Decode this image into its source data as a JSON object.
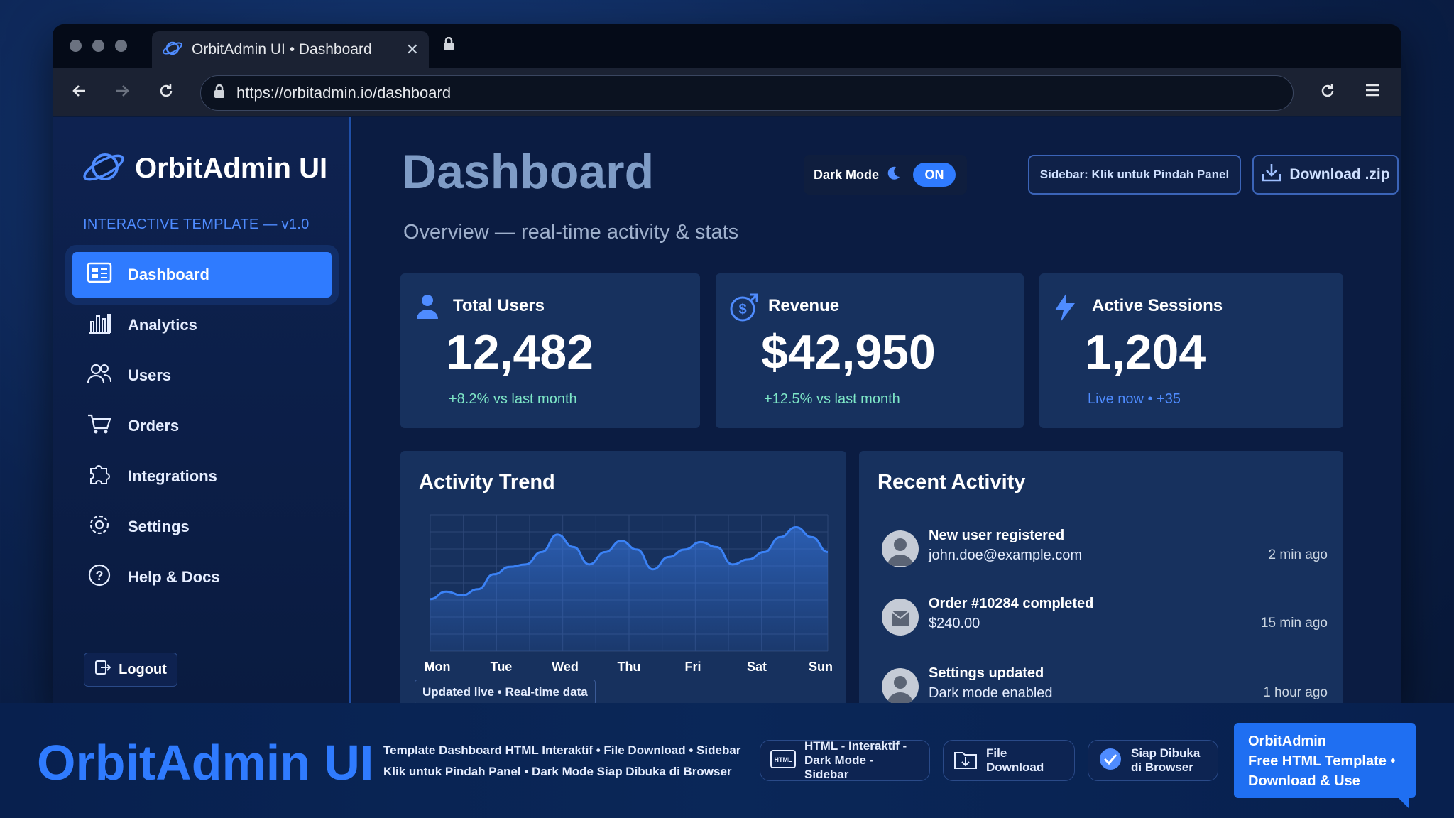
{
  "browser": {
    "tab_title": "OrbitAdmin UI • Dashboard",
    "tab_close": "✕",
    "url": "https://orbitadmin.io/dashboard"
  },
  "sidebar": {
    "brand": "OrbitAdmin UI",
    "subtitle": "INTERACTIVE TEMPLATE — v1.0",
    "items": [
      {
        "label": "Dashboard",
        "icon": "dashboard-icon",
        "active": true
      },
      {
        "label": "Analytics",
        "icon": "bar-chart-icon",
        "active": false
      },
      {
        "label": "Users",
        "icon": "users-icon",
        "active": false
      },
      {
        "label": "Orders",
        "icon": "cart-icon",
        "active": false
      },
      {
        "label": "Integrations",
        "icon": "puzzle-icon",
        "active": false
      },
      {
        "label": "Settings",
        "icon": "gear-icon",
        "active": false
      },
      {
        "label": "Help & Docs",
        "icon": "help-icon",
        "active": false
      }
    ],
    "logout": "Logout"
  },
  "header": {
    "title": "Dashboard",
    "subtitle": "Overview — real-time activity & stats",
    "dark_mode_label": "Dark Mode",
    "dark_mode_state": "ON",
    "sidebar_button": "Sidebar: Klik untuk Pindah Panel",
    "download_button": "Download .zip"
  },
  "stats": [
    {
      "title": "Total Users",
      "value": "12,482",
      "sub": "+8.2% vs last month",
      "icon": "user-icon",
      "sub_color": "#7ee7c7"
    },
    {
      "title": "Revenue",
      "value": "$42,950",
      "sub": "+12.5% vs last month",
      "icon": "dollar-icon",
      "sub_color": "#7ee7c7"
    },
    {
      "title": "Active Sessions",
      "value": "1,204",
      "sub": "Live now • +35",
      "icon": "lightning-icon",
      "sub_color": "#4f8cff"
    }
  ],
  "activity_trend": {
    "title": "Activity Trend",
    "badge": "Updated live • Real-time data"
  },
  "chart_data": {
    "type": "area",
    "x": [
      "Mon",
      "Tue",
      "Wed",
      "Thu",
      "Fri",
      "Sat",
      "Sun"
    ],
    "samples": [
      42,
      48,
      45,
      50,
      62,
      68,
      70,
      80,
      94,
      84,
      70,
      80,
      89,
      82,
      66,
      76,
      82,
      88,
      84,
      70,
      74,
      80,
      92,
      100,
      92,
      80
    ],
    "color": "#3b82f6",
    "grid": true
  },
  "recent_activity": {
    "title": "Recent Activity",
    "items": [
      {
        "title": "New user registered",
        "detail": "john.doe@example.com",
        "time": "2 min ago"
      },
      {
        "title": "Order #10284 completed",
        "detail": "$240.00",
        "time": "15 min ago"
      },
      {
        "title": "Settings updated",
        "detail": "Dark mode enabled",
        "time": "1 hour ago"
      }
    ]
  },
  "footer": {
    "brand": "OrbitAdmin UI",
    "desc_line1": "Template Dashboard HTML Interaktif • File Download • Sidebar",
    "desc_line2": "Klik untuk Pindah Panel • Dark Mode Siap Dibuka di Browser",
    "pill1_line1": "HTML - Interaktif -",
    "pill1_line2": "Dark Mode - Sidebar",
    "pill1_icon_text": "HTML",
    "pill2": "File Download",
    "pill3_line1": "Siap Dibuka",
    "pill3_line2": "di Browser",
    "promo_line1": "OrbitAdmin",
    "promo_line2": "Free HTML Template •",
    "promo_line3": "Download & Use"
  }
}
